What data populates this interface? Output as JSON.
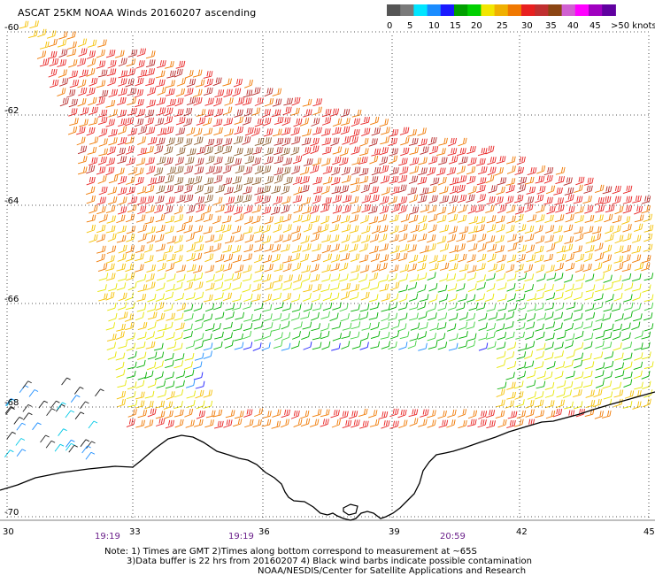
{
  "title": "ASCAT 25KM NOAA Winds 20160207 ascending",
  "legend": {
    "colors": [
      "#555555",
      "#7a7a7a",
      "#00e5ff",
      "#1a8cff",
      "#1a1aff",
      "#00a000",
      "#00d000",
      "#f2e600",
      "#f0b000",
      "#f07800",
      "#e82020",
      "#c03030",
      "#8b4513",
      "#d060d0",
      "#ff00ff",
      "#a000c0",
      "#6000a0"
    ],
    "labels": [
      "0",
      "5",
      "10",
      "15",
      "20",
      "25",
      "30",
      "35",
      "40",
      "45",
      ">50 knots"
    ]
  },
  "axes": {
    "lon_labels": [
      "30",
      "33",
      "36",
      "39",
      "42",
      "45"
    ],
    "lat_labels": [
      "-60",
      "-62",
      "-64",
      "-66",
      "-68",
      "-70"
    ],
    "times": [
      "19:19",
      "19:19",
      "20:59"
    ]
  },
  "notes": {
    "line1": "Note: 1) Times are GMT 2)Times along bottom correspond to measurement at ~65S",
    "line2": "3)Data buffer is 22 hrs from 20160207 4) Black wind barbs indicate possible contamination",
    "line3": "NOAA/NESDIS/Center for Satellite Applications and Research"
  }
}
